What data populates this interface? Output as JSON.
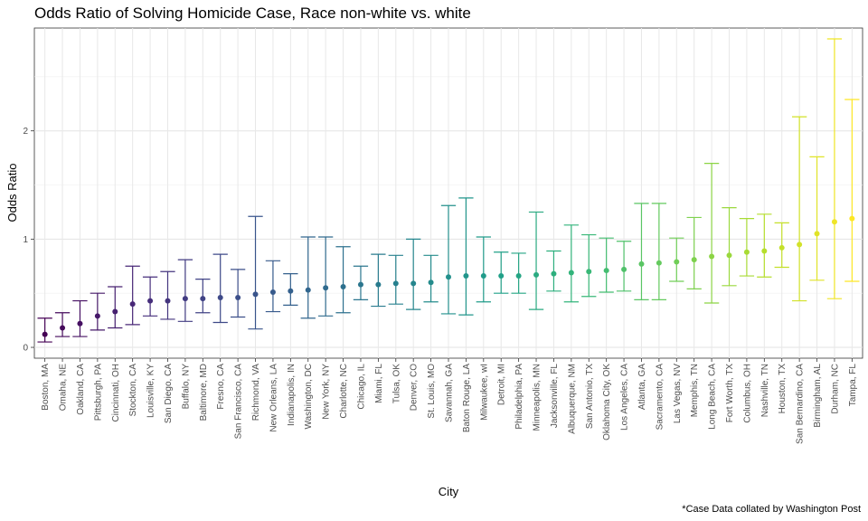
{
  "chart_data": {
    "type": "errorbar-point",
    "title": "Odds Ratio of Solving Homicide Case, Race non-white vs. white",
    "xlabel": "City",
    "ylabel": "Odds Ratio",
    "caption": "*Case Data collated by Washington Post",
    "ylim": [
      -0.1,
      2.95
    ],
    "yticks": [
      0,
      1,
      2
    ],
    "grid": true,
    "color_scale": "viridis",
    "categories": [
      "Boston, MA",
      "Omaha, NE",
      "Oakland, CA",
      "Pittsburgh, PA",
      "Cincinnati, OH",
      "Stockton, CA",
      "Louisville, KY",
      "San Diego, CA",
      "Buffalo, NY",
      "Baltimore, MD",
      "Fresno, CA",
      "San Francisco, CA",
      "Richmond, VA",
      "New Orleans, LA",
      "Indianapolis, IN",
      "Washington, DC",
      "New York, NY",
      "Charlotte, NC",
      "Chicago, IL",
      "Miami, FL",
      "Tulsa, OK",
      "Denver, CO",
      "St. Louis, MO",
      "Savannah, GA",
      "Baton Rouge, LA",
      "Milwaukee, wI",
      "Detroit, MI",
      "Philadelphia, PA",
      "Minneapolis, MN",
      "Jacksonville, FL",
      "Albuquerque, NM",
      "San Antonio, TX",
      "Oklahoma City, OK",
      "Los Angeles, CA",
      "Atlanta, GA",
      "Sacramento, CA",
      "Las Vegas, NV",
      "Memphis, TN",
      "Long Beach, CA",
      "Fort Worth, TX",
      "Columbus, OH",
      "Nashville, TN",
      "Houston, TX",
      "San Bernardino, CA",
      "Birmingham, AL",
      "Durham, NC",
      "Tampa, FL"
    ],
    "series": [
      {
        "or": [
          0.12,
          0.18,
          0.22,
          0.29,
          0.33,
          0.4,
          0.43,
          0.43,
          0.45,
          0.45,
          0.46,
          0.46,
          0.49,
          0.51,
          0.52,
          0.53,
          0.55,
          0.56,
          0.58,
          0.58,
          0.59,
          0.59,
          0.6,
          0.65,
          0.66,
          0.66,
          0.66,
          0.66,
          0.67,
          0.68,
          0.69,
          0.7,
          0.71,
          0.72,
          0.77,
          0.78,
          0.79,
          0.81,
          0.84,
          0.85,
          0.88,
          0.89,
          0.92,
          0.95,
          1.05,
          1.16,
          1.19
        ],
        "lower": [
          0.05,
          0.1,
          0.1,
          0.16,
          0.18,
          0.21,
          0.29,
          0.26,
          0.24,
          0.32,
          0.23,
          0.28,
          0.17,
          0.33,
          0.39,
          0.27,
          0.29,
          0.32,
          0.44,
          0.38,
          0.4,
          0.35,
          0.42,
          0.31,
          0.3,
          0.42,
          0.5,
          0.5,
          0.35,
          0.52,
          0.42,
          0.47,
          0.51,
          0.52,
          0.44,
          0.44,
          0.61,
          0.54,
          0.41,
          0.57,
          0.66,
          0.65,
          0.74,
          0.43,
          0.62,
          0.45,
          0.61
        ],
        "upper": [
          0.27,
          0.32,
          0.43,
          0.5,
          0.56,
          0.75,
          0.65,
          0.7,
          0.81,
          0.63,
          0.86,
          0.72,
          1.21,
          0.8,
          0.68,
          1.02,
          1.02,
          0.93,
          0.75,
          0.86,
          0.85,
          1.0,
          0.85,
          1.31,
          1.38,
          1.02,
          0.88,
          0.87,
          1.25,
          0.89,
          1.13,
          1.04,
          1.01,
          0.98,
          1.33,
          1.33,
          1.01,
          1.2,
          1.7,
          1.29,
          1.19,
          1.23,
          1.15,
          2.13,
          1.76,
          2.85,
          2.29
        ]
      }
    ]
  }
}
